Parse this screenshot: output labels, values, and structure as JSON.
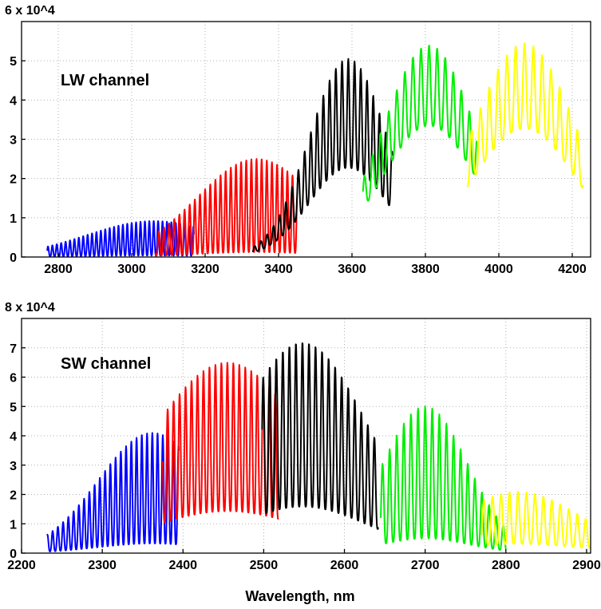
{
  "chart_data": [
    {
      "type": "line",
      "annotation": "LW channel",
      "ymult": "6 x 10^4",
      "xlim": [
        2700,
        4250
      ],
      "ylim": [
        0,
        6
      ],
      "xticks": [
        2800,
        3000,
        3200,
        3400,
        3600,
        3800,
        4000,
        4200
      ],
      "yticks": [
        0,
        1,
        2,
        3,
        4,
        5
      ],
      "grid": true,
      "series": [
        {
          "color": "#0000ff",
          "start": 2770,
          "end": 3170,
          "period": 12,
          "peak": 3060,
          "pmax": 0.92,
          "width": 260,
          "vratio": 0.04
        },
        {
          "color": "#ff0000",
          "start": 3065,
          "end": 3450,
          "period": 14,
          "peak": 3340,
          "pmax": 2.5,
          "width": 230,
          "vratio": 0.05
        },
        {
          "color": "#000000",
          "start": 3330,
          "end": 3710,
          "period": 17,
          "peak": 3590,
          "pmax": 5.05,
          "width": 150,
          "vratio": 0.45
        },
        {
          "color": "#00ee00",
          "start": 3630,
          "end": 3940,
          "period": 22,
          "peak": 3810,
          "pmax": 5.4,
          "width": 180,
          "vratio": 0.62
        },
        {
          "color": "#ffff00",
          "start": 3915,
          "end": 4230,
          "period": 24,
          "peak": 4070,
          "pmax": 5.45,
          "width": 200,
          "vratio": 0.6
        }
      ]
    },
    {
      "type": "line",
      "annotation": "SW channel",
      "ymult": "8 x 10^4",
      "xlabel": "Wavelength, nm",
      "xlim": [
        2200,
        2905
      ],
      "ylim": [
        0,
        8
      ],
      "xticks": [
        2200,
        2300,
        2400,
        2500,
        2600,
        2700,
        2800,
        2900
      ],
      "yticks": [
        0,
        1,
        2,
        3,
        4,
        5,
        6,
        7
      ],
      "grid": true,
      "series": [
        {
          "color": "#0000ff",
          "start": 2232,
          "end": 2395,
          "period": 6.5,
          "peak": 2362,
          "pmax": 4.1,
          "width": 95,
          "vratio": 0.08
        },
        {
          "color": "#ff0000",
          "start": 2375,
          "end": 2518,
          "period": 7.4,
          "peak": 2455,
          "pmax": 6.5,
          "width": 140,
          "vratio": 0.22
        },
        {
          "color": "#000000",
          "start": 2498,
          "end": 2642,
          "period": 8.1,
          "peak": 2548,
          "pmax": 7.2,
          "width": 115,
          "vratio": 0.22
        },
        {
          "color": "#00ee00",
          "start": 2645,
          "end": 2800,
          "period": 8.8,
          "peak": 2700,
          "pmax": 5.0,
          "width": 75,
          "vratio": 0.1
        },
        {
          "color": "#ffff00",
          "start": 2770,
          "end": 2905,
          "period": 10.5,
          "peak": 2815,
          "pmax": 2.1,
          "width": 110,
          "vratio": 0.15
        }
      ]
    }
  ]
}
